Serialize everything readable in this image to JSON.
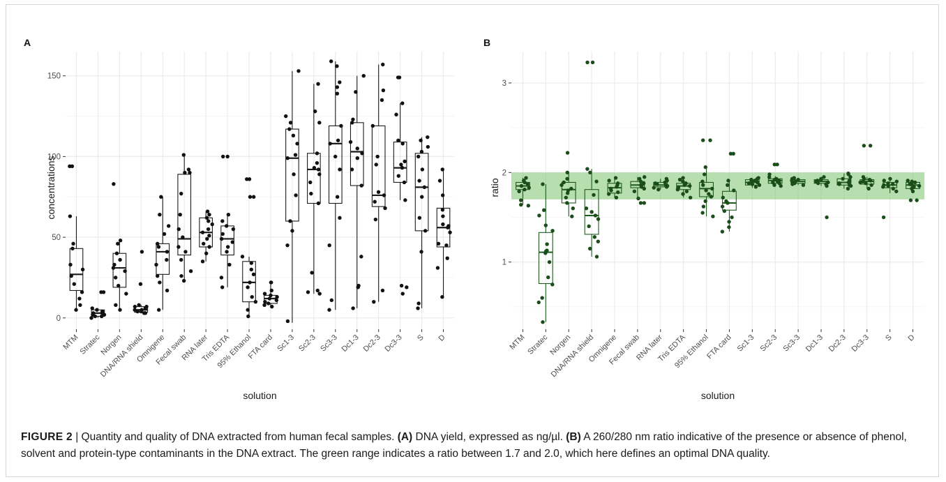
{
  "chart_data": [
    {
      "panel_label": "A",
      "type": "boxplot",
      "xlabel": "solution",
      "ylabel": "concentrations",
      "ylim": [
        -7,
        165
      ],
      "yticks": [
        0,
        50,
        100,
        150
      ],
      "grid": true,
      "categories": [
        "MTM",
        "Stratec",
        "Norgen",
        "DNA/RNA shield",
        "Omnigene",
        "Fecal swab",
        "RNA later",
        "Tris EDTA",
        "95% Ethanol",
        "FTA card",
        "Sc1-3",
        "Sc2-3",
        "Sc3-3",
        "Dc1-3",
        "Dc2-3",
        "Dc3-3",
        "S",
        "D"
      ],
      "boxes": [
        {
          "category": "MTM",
          "whisker_low": 5,
          "q1": 17,
          "median": 27,
          "q3": 43,
          "whisker_high": 63
        },
        {
          "category": "Stratec",
          "whisker_low": 0,
          "q1": 1,
          "median": 3,
          "q3": 5,
          "whisker_high": 6
        },
        {
          "category": "Norgen",
          "whisker_low": 5,
          "q1": 19,
          "median": 31,
          "q3": 40,
          "whisker_high": 48
        },
        {
          "category": "DNA/RNA shield",
          "whisker_low": 3,
          "q1": 3.5,
          "median": 5,
          "q3": 7,
          "whisker_high": 8
        },
        {
          "category": "Omnigene",
          "whisker_low": 5,
          "q1": 27,
          "median": 41,
          "q3": 46,
          "whisker_high": 75
        },
        {
          "category": "Fecal swab",
          "whisker_low": 23,
          "q1": 39,
          "median": 49,
          "q3": 89,
          "whisker_high": 101
        },
        {
          "category": "RNA later",
          "whisker_low": 35,
          "q1": 44,
          "median": 53,
          "q3": 62,
          "whisker_high": 66
        },
        {
          "category": "Tris EDTA",
          "whisker_low": 19,
          "q1": 39,
          "median": 49,
          "q3": 57,
          "whisker_high": 64
        },
        {
          "category": "95% Ethanol",
          "whisker_low": 1,
          "q1": 10,
          "median": 22,
          "q3": 35,
          "whisker_high": 38
        },
        {
          "category": "FTA card",
          "whisker_low": 7,
          "q1": 9,
          "median": 12,
          "q3": 14,
          "whisker_high": 22
        },
        {
          "category": "Sc1-3",
          "whisker_low": -3,
          "q1": 60,
          "median": 99,
          "q3": 117,
          "whisker_high": 153
        },
        {
          "category": "Sc2-3",
          "whisker_low": 15,
          "q1": 71,
          "median": 92,
          "q3": 102,
          "whisker_high": 145
        },
        {
          "category": "Sc3-3",
          "whisker_low": 5,
          "q1": 71,
          "median": 108,
          "q3": 119,
          "whisker_high": 159
        },
        {
          "category": "Dc1-3",
          "whisker_low": 6,
          "q1": 82,
          "median": 103,
          "q3": 121,
          "whisker_high": 150
        },
        {
          "category": "Dc2-3",
          "whisker_low": 10,
          "q1": 69,
          "median": 76,
          "q3": 119,
          "whisker_high": 157
        },
        {
          "category": "Dc3-3",
          "whisker_low": 73,
          "q1": 84,
          "median": 93,
          "q3": 109,
          "whisker_high": 133
        },
        {
          "category": "S",
          "whisker_low": 6,
          "q1": 54,
          "median": 81,
          "q3": 102,
          "whisker_high": 112
        },
        {
          "category": "D",
          "whisker_low": 13,
          "q1": 44,
          "median": 56,
          "q3": 68,
          "whisker_high": 92
        }
      ],
      "points": [
        [
          94,
          94,
          63,
          46,
          43,
          33,
          30,
          26,
          21,
          16,
          12,
          8,
          5
        ],
        [
          16,
          16,
          6,
          5,
          4,
          3,
          3,
          2,
          2,
          1,
          1,
          0
        ],
        [
          83,
          48,
          46,
          40,
          36,
          33,
          31,
          29,
          25,
          20,
          15,
          8,
          5
        ],
        [
          41,
          21,
          8,
          7,
          7,
          6,
          5,
          5,
          4,
          4,
          3,
          3
        ],
        [
          75,
          64,
          57,
          52,
          46,
          44,
          41,
          36,
          33,
          26,
          22,
          17,
          5
        ],
        [
          101,
          92,
          90,
          90,
          77,
          64,
          55,
          50,
          44,
          41,
          36,
          29,
          26,
          23
        ],
        [
          66,
          64,
          62,
          60,
          58,
          55,
          53,
          51,
          49,
          46,
          44,
          40,
          35
        ],
        [
          100,
          100,
          64,
          60,
          57,
          55,
          52,
          49,
          47,
          44,
          41,
          33,
          25,
          19
        ],
        [
          86,
          86,
          75,
          75,
          38,
          34,
          30,
          27,
          22,
          19,
          13,
          10,
          5,
          1
        ],
        [
          22,
          22,
          17,
          15,
          14,
          13,
          12,
          11,
          10,
          9,
          8,
          7
        ],
        [
          153,
          125,
          121,
          117,
          113,
          108,
          101,
          99,
          89,
          76,
          60,
          54,
          45,
          -2
        ],
        [
          145,
          128,
          121,
          102,
          96,
          93,
          92,
          89,
          84,
          77,
          71,
          28,
          17,
          16,
          15
        ],
        [
          159,
          156,
          146,
          143,
          139,
          119,
          110,
          108,
          100,
          92,
          75,
          62,
          45,
          11,
          5
        ],
        [
          150,
          140,
          123,
          121,
          109,
          105,
          102,
          99,
          92,
          82,
          38,
          20,
          19,
          6
        ],
        [
          157,
          141,
          135,
          119,
          100,
          95,
          78,
          76,
          72,
          68,
          61,
          17,
          10
        ],
        [
          149,
          149,
          133,
          126,
          110,
          108,
          97,
          95,
          93,
          88,
          84,
          73,
          20,
          19,
          15
        ],
        [
          112,
          110,
          106,
          103,
          100,
          92,
          85,
          81,
          75,
          62,
          54,
          41,
          9,
          6
        ],
        [
          92,
          85,
          76,
          67,
          63,
          58,
          57,
          56,
          53,
          46,
          45,
          37,
          31,
          13
        ]
      ]
    },
    {
      "panel_label": "B",
      "type": "boxplot",
      "xlabel": "solution",
      "ylabel": "ratio",
      "ylim": [
        0.25,
        3.35
      ],
      "yticks": [
        1,
        2,
        3
      ],
      "grid": true,
      "band": {
        "from": 1.7,
        "to": 2.0,
        "color": "#7cc36e"
      },
      "categories": [
        "MTM",
        "Stratec",
        "Norgen",
        "DNA/RNA shield",
        "Omnigene",
        "Fecal swab",
        "RNA later",
        "Tris EDTA",
        "95% Ethanol",
        "FTA card",
        "Sc1-3",
        "Sc2-3",
        "Sc3-3",
        "Dc1-3",
        "Dc2-3",
        "Dc3-3",
        "S",
        "D"
      ],
      "boxes": [
        {
          "category": "MTM",
          "whisker_low": 1.64,
          "q1": 1.81,
          "median": 1.85,
          "q3": 1.89,
          "whisker_high": 1.94
        },
        {
          "category": "Stratec",
          "whisker_low": 0.33,
          "q1": 0.76,
          "median": 1.11,
          "q3": 1.33,
          "whisker_high": 1.87
        },
        {
          "category": "Norgen",
          "whisker_low": 1.51,
          "q1": 1.66,
          "median": 1.81,
          "q3": 1.89,
          "whisker_high": 2.0
        },
        {
          "category": "DNA/RNA shield",
          "whisker_low": 1.06,
          "q1": 1.31,
          "median": 1.52,
          "q3": 1.81,
          "whisker_high": 2.04
        },
        {
          "category": "Omnigene",
          "whisker_low": 1.72,
          "q1": 1.77,
          "median": 1.83,
          "q3": 1.88,
          "whisker_high": 1.94
        },
        {
          "category": "Fecal swab",
          "whisker_low": 1.71,
          "q1": 1.83,
          "median": 1.86,
          "q3": 1.9,
          "whisker_high": 1.95
        },
        {
          "category": "RNA later",
          "whisker_low": 1.81,
          "q1": 1.84,
          "median": 1.86,
          "q3": 1.89,
          "whisker_high": 1.93
        },
        {
          "category": "Tris EDTA",
          "whisker_low": 1.72,
          "q1": 1.81,
          "median": 1.85,
          "q3": 1.88,
          "whisker_high": 1.94
        },
        {
          "category": "95% Ethanol",
          "whisker_low": 1.51,
          "q1": 1.73,
          "median": 1.82,
          "q3": 1.89,
          "whisker_high": 2.06
        },
        {
          "category": "FTA card",
          "whisker_low": 1.34,
          "q1": 1.58,
          "median": 1.66,
          "q3": 1.79,
          "whisker_high": 1.91
        },
        {
          "category": "Sc1-3",
          "whisker_low": 1.83,
          "q1": 1.86,
          "median": 1.89,
          "q3": 1.92,
          "whisker_high": 1.94
        },
        {
          "category": "Sc2-3",
          "whisker_low": 1.85,
          "q1": 1.88,
          "median": 1.91,
          "q3": 1.93,
          "whisker_high": 1.96
        },
        {
          "category": "Sc3-3",
          "whisker_low": 1.86,
          "q1": 1.88,
          "median": 1.9,
          "q3": 1.92,
          "whisker_high": 1.94
        },
        {
          "category": "Dc1-3",
          "whisker_low": 1.85,
          "q1": 1.88,
          "median": 1.9,
          "q3": 1.92,
          "whisker_high": 1.95
        },
        {
          "category": "Dc2-3",
          "whisker_low": 1.82,
          "q1": 1.86,
          "median": 1.89,
          "q3": 1.93,
          "whisker_high": 1.99
        },
        {
          "category": "Dc3-3",
          "whisker_low": 1.82,
          "q1": 1.87,
          "median": 1.9,
          "q3": 1.92,
          "whisker_high": 1.95
        },
        {
          "category": "S",
          "whisker_low": 1.77,
          "q1": 1.83,
          "median": 1.86,
          "q3": 1.89,
          "whisker_high": 1.93
        },
        {
          "category": "D",
          "whisker_low": 1.78,
          "q1": 1.82,
          "median": 1.86,
          "q3": 1.89,
          "whisker_high": 1.91
        }
      ],
      "points": [
        [
          1.94,
          1.91,
          1.89,
          1.87,
          1.85,
          1.83,
          1.81,
          1.79,
          1.69,
          1.64,
          1.63
        ],
        [
          1.87,
          1.58,
          1.52,
          1.41,
          1.35,
          1.2,
          1.13,
          1.12,
          1.1,
          1.0,
          0.83,
          0.75,
          0.6,
          0.55,
          0.33
        ],
        [
          2.22,
          2.0,
          1.93,
          1.89,
          1.86,
          1.82,
          1.8,
          1.77,
          1.72,
          1.66,
          1.6,
          1.51
        ],
        [
          3.23,
          3.23,
          2.04,
          2.0,
          1.9,
          1.75,
          1.6,
          1.56,
          1.52,
          1.48,
          1.4,
          1.28,
          1.23,
          1.15,
          1.06
        ],
        [
          1.94,
          1.91,
          1.88,
          1.86,
          1.84,
          1.82,
          1.8,
          1.78,
          1.76,
          1.72
        ],
        [
          1.95,
          1.93,
          1.9,
          1.88,
          1.86,
          1.84,
          1.82,
          1.79,
          1.71,
          1.66,
          1.66
        ],
        [
          1.93,
          1.91,
          1.89,
          1.88,
          1.87,
          1.86,
          1.85,
          1.84,
          1.83,
          1.81
        ],
        [
          1.94,
          1.92,
          1.9,
          1.88,
          1.86,
          1.85,
          1.83,
          1.81,
          1.79,
          1.76,
          1.72
        ],
        [
          2.36,
          2.36,
          2.06,
          1.98,
          1.9,
          1.86,
          1.82,
          1.8,
          1.76,
          1.73,
          1.68,
          1.62,
          1.55,
          1.51
        ],
        [
          2.21,
          2.21,
          1.91,
          1.86,
          1.8,
          1.72,
          1.68,
          1.66,
          1.62,
          1.57,
          1.5,
          1.45,
          1.39,
          1.34
        ],
        [
          1.94,
          1.93,
          1.92,
          1.91,
          1.9,
          1.89,
          1.88,
          1.87,
          1.86,
          1.84
        ],
        [
          2.09,
          2.09,
          1.98,
          1.95,
          1.93,
          1.92,
          1.91,
          1.9,
          1.89,
          1.88,
          1.86,
          1.85
        ],
        [
          1.94,
          1.93,
          1.92,
          1.91,
          1.9,
          1.89,
          1.88,
          1.87,
          1.86
        ],
        [
          1.95,
          1.93,
          1.92,
          1.91,
          1.9,
          1.9,
          1.89,
          1.88,
          1.87,
          1.85,
          1.5
        ],
        [
          1.99,
          1.98,
          1.95,
          1.93,
          1.91,
          1.9,
          1.89,
          1.88,
          1.87,
          1.86,
          1.85,
          1.82
        ],
        [
          2.3,
          2.3,
          1.95,
          1.93,
          1.92,
          1.91,
          1.9,
          1.89,
          1.88,
          1.86,
          1.82
        ],
        [
          1.93,
          1.91,
          1.9,
          1.88,
          1.87,
          1.86,
          1.85,
          1.84,
          1.82,
          1.79,
          1.5
        ],
        [
          1.91,
          1.9,
          1.89,
          1.88,
          1.87,
          1.86,
          1.85,
          1.84,
          1.82,
          1.79,
          1.69,
          1.69
        ]
      ]
    }
  ],
  "caption": {
    "figure_label": "FIGURE 2",
    "separator": " | ",
    "title": "Quantity and quality of DNA extracted from human fecal samples. ",
    "part_a_label": "(A)",
    "part_a_text": " DNA yield, expressed as ng/µl. ",
    "part_b_label": "(B)",
    "part_b_text": " A 260/280 nm ratio indicative of the presence or absence of phenol, solvent and protein-type contaminants in the DNA extract. The green range indicates a ratio between 1.7 and 2.0, which here defines an optimal DNA quality."
  },
  "colors": {
    "panel_background": "#ffffff",
    "gridline": "#ebebeb",
    "point_a": "#111111",
    "point_b": "#1b4d1b",
    "band_fill": "#7cc36e",
    "box_b_stroke": "#1f5a1f"
  }
}
